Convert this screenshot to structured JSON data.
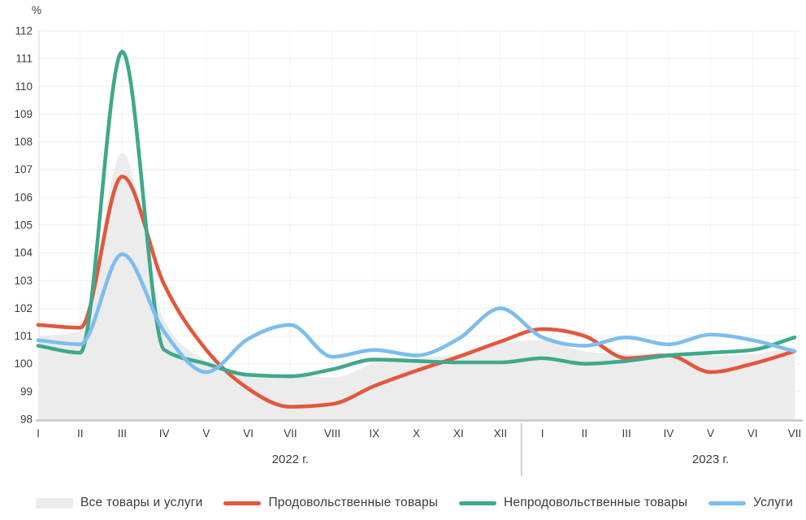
{
  "chart_data": {
    "type": "line",
    "title": "",
    "y_unit": "%",
    "ylim": [
      98,
      112
    ],
    "y_ticks": [
      98,
      99,
      100,
      101,
      102,
      103,
      104,
      105,
      106,
      107,
      108,
      109,
      110,
      111,
      112
    ],
    "grid": true,
    "legend_position": "bottom",
    "x_groups": [
      {
        "year_label": "2022 г.",
        "months": [
          "I",
          "II",
          "III",
          "IV",
          "V",
          "VI",
          "VII",
          "VIII",
          "IX",
          "X",
          "XI",
          "XII"
        ]
      },
      {
        "year_label": "2023 г.",
        "months": [
          "I",
          "II",
          "III",
          "IV",
          "V",
          "VI",
          "VII"
        ]
      }
    ],
    "series": [
      {
        "name": "Все товары и услуги",
        "type": "area",
        "color": "#ececec",
        "values": [
          101.0,
          101.15,
          107.6,
          101.55,
          100.1,
          99.6,
          99.6,
          99.5,
          100.0,
          100.2,
          100.35,
          100.75,
          100.85,
          100.45,
          100.35,
          100.4,
          100.3,
          100.35,
          100.6
        ]
      },
      {
        "name": "Продовольственные товары",
        "type": "line",
        "color": "#e2573d",
        "values": [
          101.4,
          101.3,
          106.75,
          102.85,
          100.5,
          99.1,
          98.45,
          98.55,
          99.2,
          99.75,
          100.25,
          100.8,
          101.25,
          101.0,
          100.2,
          100.3,
          99.7,
          100.0,
          100.45
        ]
      },
      {
        "name": "Непродовольственные товары",
        "type": "line",
        "color": "#3fa98a",
        "values": [
          100.65,
          100.4,
          111.25,
          100.5,
          100.0,
          99.6,
          99.55,
          99.8,
          100.15,
          100.1,
          100.05,
          100.05,
          100.2,
          100.0,
          100.1,
          100.3,
          100.4,
          100.5,
          100.95
        ]
      },
      {
        "name": "Услуги",
        "type": "line",
        "color": "#7cbdf0",
        "values": [
          100.85,
          100.7,
          103.95,
          101.15,
          99.7,
          100.9,
          101.4,
          100.25,
          100.5,
          100.3,
          100.9,
          102.0,
          100.95,
          100.65,
          100.95,
          100.7,
          101.05,
          100.85,
          100.45
        ]
      }
    ],
    "colors": {
      "grid_horizontal": "#ededed",
      "grid_vertical": "#f3f3f3",
      "axis_line": "#c6c6c6",
      "y_axis_line": "#d9d9d9",
      "year_separator": "#d0d0d0",
      "tick_text": "#3c3c3c",
      "area_fill": "#ececec"
    }
  }
}
